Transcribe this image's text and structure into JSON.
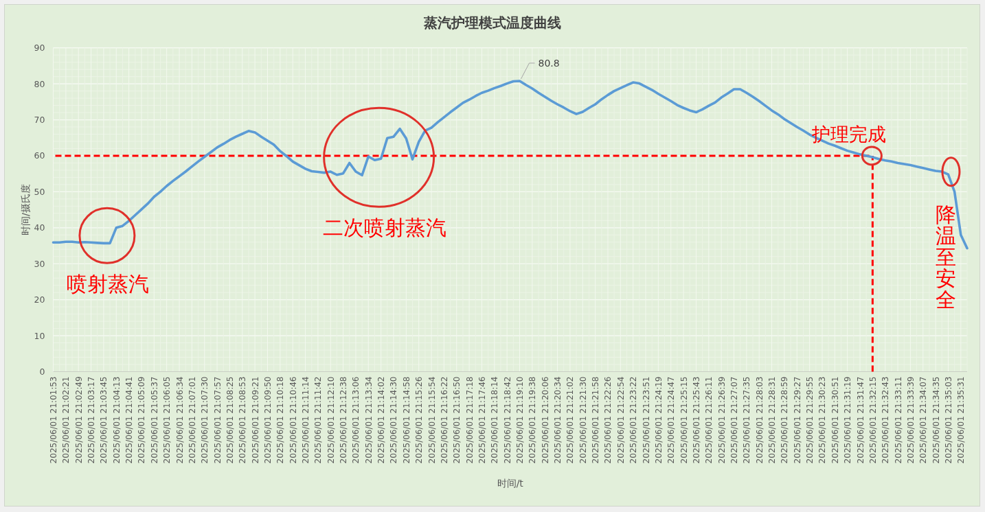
{
  "chart_data": {
    "type": "line",
    "title": "蒸汽护理模式温度曲线",
    "xlabel": "时间/t",
    "ylabel": "时间/摄氏度",
    "categories": [
      "2025/06/01 21:01:53",
      null,
      "2025/06/01 21:02:21",
      null,
      "2025/06/01 21:02:49",
      null,
      "2025/06/01 21:03:17",
      null,
      "2025/06/01 21:03:45",
      null,
      "2025/06/01 21:04:13",
      null,
      "2025/06/01 21:04:41",
      null,
      "2025/06/01 21:05:09",
      null,
      "2025/06/01 21:05:37",
      null,
      "2025/06/01 21:06:05",
      null,
      "2025/06/01 21:06:34",
      null,
      "2025/06/01 21:07:01",
      null,
      "2025/06/01 21:07:30",
      null,
      "2025/06/01 21:07:57",
      null,
      "2025/06/01 21:08:25",
      null,
      "2025/06/01 21:08:53",
      null,
      "2025/06/01 21:09:21",
      null,
      "2025/06/01 21:09:50",
      null,
      "2025/06/01 21:10:18",
      null,
      "2025/06/01 21:10:46",
      null,
      "2025/06/01 21:11:14",
      null,
      "2025/06/01 21:11:42",
      null,
      "2025/06/01 21:12:10",
      null,
      "2025/06/01 21:12:38",
      null,
      "2025/06/01 21:13:06",
      null,
      "2025/06/01 21:13:34",
      null,
      "2025/06/01 21:14:02",
      null,
      "2025/06/01 21:14:30",
      null,
      "2025/06/01 21:14:58",
      null,
      "2025/06/01 21:15:26",
      null,
      "2025/06/01 21:15:54",
      null,
      "2025/06/01 21:16:22",
      null,
      "2025/06/01 21:16:50",
      null,
      "2025/06/01 21:17:18",
      null,
      "2025/06/01 21:17:46",
      null,
      "2025/06/01 21:18:14",
      null,
      "2025/06/01 21:18:42",
      null,
      "2025/06/01 21:19:10",
      null,
      "2025/06/01 21:19:38",
      null,
      "2025/06/01 21:20:06",
      null,
      "2025/06/01 21:20:34",
      null,
      "2025/06/01 21:21:02",
      null,
      "2025/06/01 21:21:30",
      null,
      "2025/06/01 21:21:58",
      null,
      "2025/06/01 21:22:26",
      null,
      "2025/06/01 21:22:54",
      null,
      "2025/06/01 21:23:22",
      null,
      "2025/06/01 21:23:51",
      null,
      "2025/06/01 21:24:19",
      null,
      "2025/06/01 21:24:47",
      null,
      "2025/06/01 21:25:15",
      null,
      "2025/06/01 21:25:43",
      null,
      "2025/06/01 21:26:11",
      null,
      "2025/06/01 21:26:39",
      null,
      "2025/06/01 21:27:07",
      null,
      "2025/06/01 21:27:35",
      null,
      "2025/06/01 21:28:03",
      null,
      "2025/06/01 21:28:31",
      null,
      "2025/06/01 21:28:59",
      null,
      "2025/06/01 21:29:27",
      null,
      "2025/06/01 21:29:55",
      null,
      "2025/06/01 21:30:23",
      null,
      "2025/06/01 21:30:51",
      null,
      "2025/06/01 21:31:19",
      null,
      "2025/06/01 21:31:47",
      null,
      "2025/06/01 21:32:15",
      null,
      "2025/06/01 21:32:43",
      null,
      "2025/06/01 21:33:11",
      null,
      "2025/06/01 21:33:39",
      null,
      "2025/06/01 21:34:07",
      null,
      "2025/06/01 21:34:35",
      null,
      "2025/06/01 21:35:03",
      null,
      "2025/06/01 21:35:31",
      null
    ],
    "series": [
      {
        "color": "#5b9bd5",
        "values": [
          35.9,
          35.9,
          36.1,
          36.1,
          35.9,
          36.0,
          35.9,
          35.8,
          35.7,
          35.7,
          40.0,
          40.5,
          41.9,
          43.5,
          45.1,
          46.7,
          48.6,
          50.0,
          51.6,
          53.0,
          54.3,
          55.6,
          57.0,
          58.4,
          59.7,
          61.0,
          62.3,
          63.3,
          64.4,
          65.3,
          66.1,
          66.9,
          66.5,
          65.3,
          64.2,
          63.1,
          61.3,
          59.9,
          58.4,
          57.4,
          56.4,
          55.7,
          55.5,
          55.3,
          55.6,
          54.7,
          55.1,
          58.0,
          55.6,
          54.6,
          59.8,
          58.8,
          59.2,
          64.9,
          65.3,
          67.5,
          64.8,
          59.0,
          63.9,
          67.0,
          67.8,
          69.3,
          70.7,
          72.1,
          73.4,
          74.7,
          75.6,
          76.6,
          77.5,
          78.1,
          78.8,
          79.4,
          80.1,
          80.7,
          80.8,
          79.7,
          78.7,
          77.5,
          76.4,
          75.3,
          74.3,
          73.4,
          72.4,
          71.6,
          72.2,
          73.3,
          74.3,
          75.7,
          76.9,
          78.0,
          78.8,
          79.6,
          80.4,
          80.1,
          79.2,
          78.3,
          77.2,
          76.2,
          75.2,
          74.1,
          73.3,
          72.6,
          72.1,
          72.9,
          73.9,
          74.8,
          76.2,
          77.3,
          78.5,
          78.5,
          77.5,
          76.4,
          75.2,
          73.9,
          72.6,
          71.5,
          70.2,
          69.1,
          68.0,
          67.0,
          65.9,
          65.0,
          64.2,
          63.4,
          62.8,
          62.1,
          61.4,
          60.9,
          60.4,
          60.0,
          59.6,
          59.1,
          58.7,
          58.4,
          58.0,
          57.7,
          57.4,
          57.0,
          56.6,
          56.2,
          55.8,
          55.6,
          54.8,
          50.0,
          38.0,
          34.3
        ],
        "value_labels": [
          null,
          null,
          null,
          null,
          null,
          null,
          null,
          null,
          null,
          null,
          null,
          null,
          null,
          null,
          null,
          null,
          null,
          null,
          null,
          null,
          null,
          null,
          null,
          null,
          null,
          null,
          null,
          null,
          null,
          null,
          null,
          null,
          null,
          null,
          null,
          null,
          null,
          null,
          null,
          null,
          null,
          null,
          null,
          null,
          null,
          null,
          null,
          null,
          null,
          null,
          null,
          null,
          null,
          null,
          null,
          null,
          null,
          null,
          null,
          null,
          null,
          null,
          null,
          null,
          null,
          null,
          null,
          null,
          null,
          null,
          null,
          null,
          null,
          null,
          "80.8",
          null,
          null,
          null,
          null,
          null,
          null,
          null,
          null,
          null,
          null,
          null,
          null,
          null,
          null,
          null,
          null,
          null,
          null,
          null,
          null,
          null,
          null,
          null,
          null,
          null,
          null,
          null,
          null,
          null,
          null,
          null,
          null,
          null,
          null,
          null,
          null,
          null,
          null,
          null,
          null,
          null,
          null,
          null,
          null,
          null,
          null,
          null,
          null,
          null,
          null,
          null,
          null,
          null,
          null,
          null,
          null,
          null,
          null,
          null,
          null,
          null,
          null,
          null,
          null,
          null,
          null,
          null,
          null,
          null,
          null,
          null
        ]
      }
    ],
    "ylim": [
      0,
      90
    ],
    "yticks": [
      0,
      10,
      20,
      30,
      40,
      50,
      60,
      70,
      80,
      90
    ],
    "grid": true,
    "line_style": "solid",
    "ref_lines": [
      {
        "axis": "y",
        "value": 60,
        "color": "#ff0000",
        "line_style": "dashed"
      },
      {
        "axis": "x",
        "value": "2025/06/01 21:32:15",
        "color": "#ff0000",
        "line_style": "dashed"
      }
    ],
    "annotations": [
      {
        "text": "喷射蒸汽",
        "x": "2025/06/01 21:03:45",
        "y": 35.7
      },
      {
        "text": "二次喷射蒸汽",
        "x": "2025/06/01 21:14:02",
        "y": 59.2
      },
      {
        "text": "护理完成",
        "x": "2025/06/01 21:32:15",
        "y": 60
      },
      {
        "text": "降温至安全",
        "x": "2025/06/01 21:35:03",
        "y": 55
      }
    ]
  }
}
